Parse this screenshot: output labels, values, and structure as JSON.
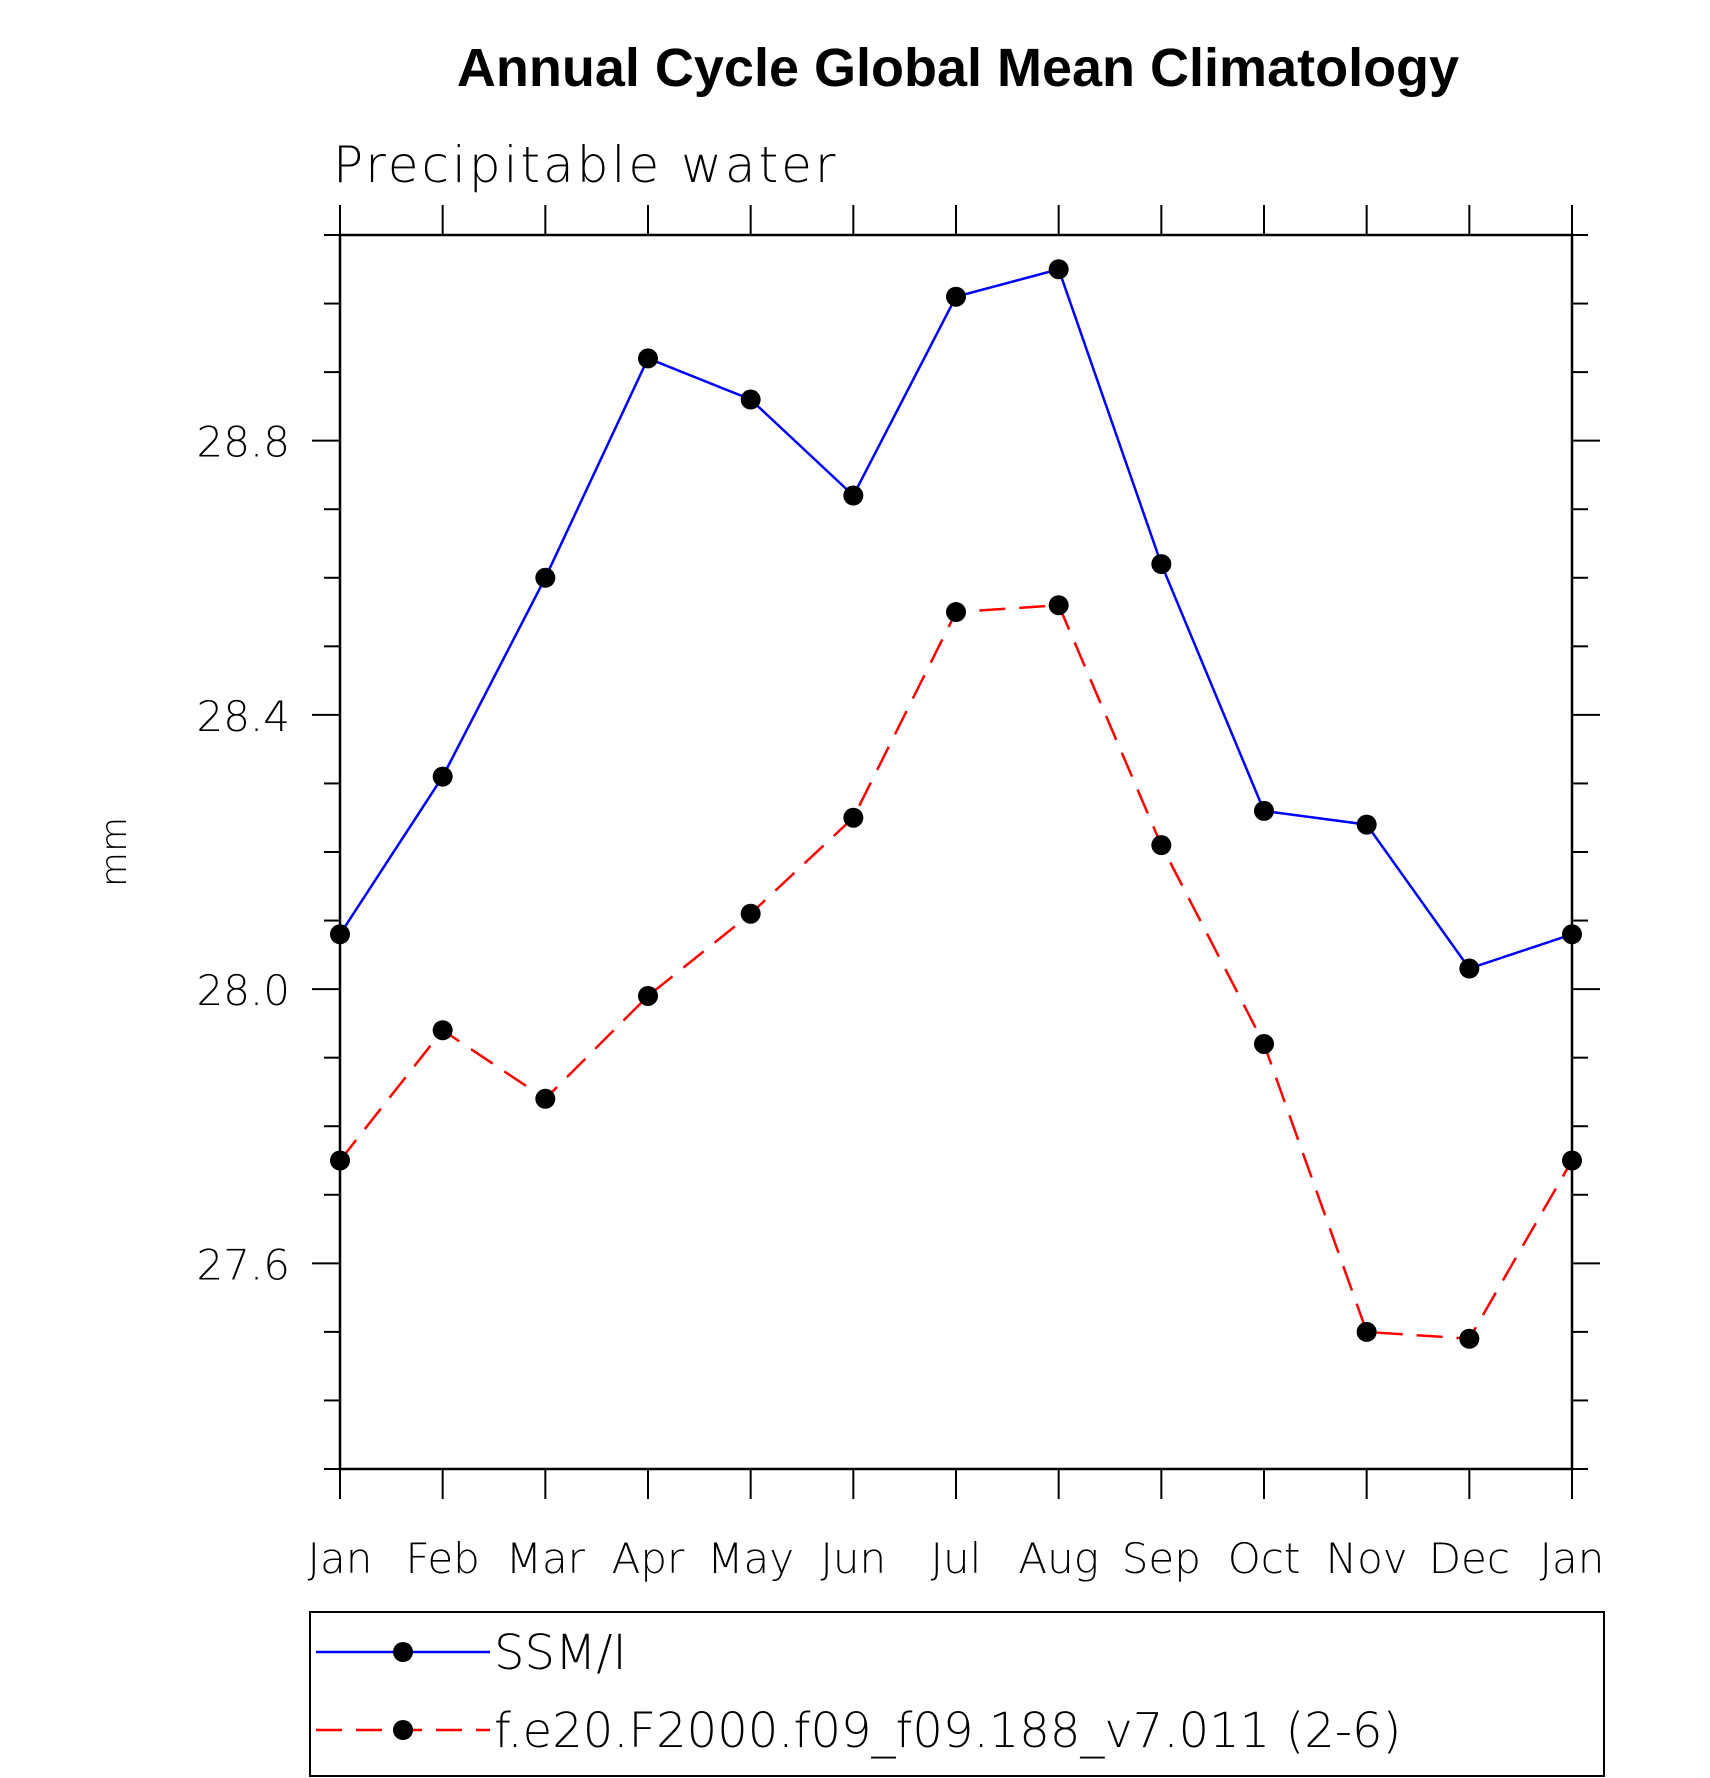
{
  "chart_data": {
    "type": "line",
    "title": "Annual Cycle Global Mean Climatology",
    "subtitle": "Precipitable water",
    "xlabel": "",
    "ylabel": "mm",
    "categories": [
      "Jan",
      "Feb",
      "Mar",
      "Apr",
      "May",
      "Jun",
      "Jul",
      "Aug",
      "Sep",
      "Oct",
      "Nov",
      "Dec",
      "Jan"
    ],
    "ylim": [
      27.3,
      29.1
    ],
    "yticks": [
      "27.6",
      "28.0",
      "28.4",
      "28.8"
    ],
    "grid": false,
    "legend_position": "bottom",
    "series": [
      {
        "name": "SSM/I",
        "color": "#0000ff",
        "line_style": "solid",
        "marker": "filled-circle",
        "values": [
          28.08,
          28.31,
          28.6,
          28.92,
          28.86,
          28.72,
          29.01,
          29.05,
          28.62,
          28.26,
          28.24,
          28.03,
          28.08
        ]
      },
      {
        "name": "f.e20.F2000.f09_f09.188_v7.011 (2-6)",
        "color": "#ff0000",
        "line_style": "dashed",
        "marker": "filled-circle",
        "values": [
          27.75,
          27.94,
          27.84,
          27.99,
          28.11,
          28.25,
          28.55,
          28.56,
          28.21,
          27.92,
          27.5,
          27.49,
          27.75
        ]
      }
    ]
  }
}
